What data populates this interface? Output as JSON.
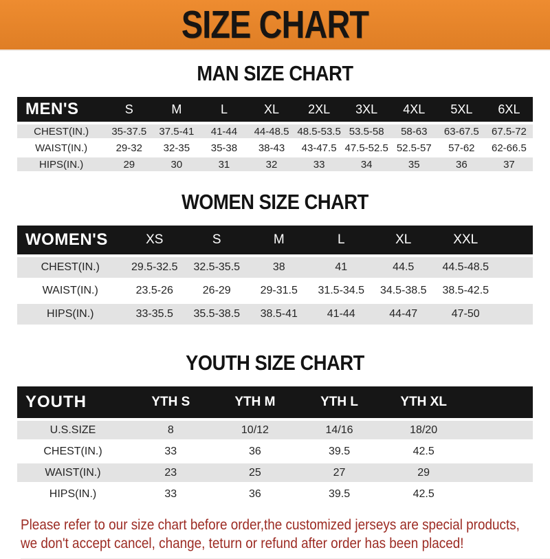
{
  "banner": {
    "title": "SIZE CHART",
    "bg_color": "#E5832C",
    "text_color": "#171513"
  },
  "colors": {
    "table_header_bar": "#161616",
    "row_stripe": "#E3E3E3",
    "footer_text": "#9C2B23"
  },
  "sections": {
    "men": {
      "heading": "MAN SIZE CHART",
      "table": {
        "corner": "MEN'S",
        "columns": [
          "S",
          "M",
          "L",
          "XL",
          "2XL",
          "3XL",
          "4XL",
          "5XL",
          "6XL"
        ],
        "rows": [
          {
            "label": "CHEST(IN.)",
            "values": [
              "35-37.5",
              "37.5-41",
              "41-44",
              "44-48.5",
              "48.5-53.5",
              "53.5-58",
              "58-63",
              "63-67.5",
              "67.5-72"
            ]
          },
          {
            "label": "WAIST(IN.)",
            "values": [
              "29-32",
              "32-35",
              "35-38",
              "38-43",
              "43-47.5",
              "47.5-52.5",
              "52.5-57",
              "57-62",
              "62-66.5"
            ]
          },
          {
            "label": "HIPS(IN.)",
            "values": [
              "29",
              "30",
              "31",
              "32",
              "33",
              "34",
              "35",
              "36",
              "37"
            ]
          }
        ],
        "filler": false
      }
    },
    "women": {
      "heading": "WOMEN SIZE CHART",
      "table": {
        "corner": "WOMEN'S",
        "columns": [
          "XS",
          "S",
          "M",
          "L",
          "XL",
          "XXL"
        ],
        "rows": [
          {
            "label": "CHEST(IN.)",
            "values": [
              "29.5-32.5",
              "32.5-35.5",
              "38",
              "41",
              "44.5",
              "44.5-48.5"
            ]
          },
          {
            "label": "WAIST(IN.)",
            "values": [
              "23.5-26",
              "26-29",
              "29-31.5",
              "31.5-34.5",
              "34.5-38.5",
              "38.5-42.5"
            ]
          },
          {
            "label": "HIPS(IN.)",
            "values": [
              "33-35.5",
              "35.5-38.5",
              "38.5-41",
              "41-44",
              "44-47",
              "47-50"
            ]
          }
        ],
        "filler": true
      }
    },
    "youth": {
      "heading": "YOUTH SIZE CHART",
      "table": {
        "corner": "YOUTH",
        "columns": [
          "YTH S",
          "YTH M",
          "YTH L",
          "YTH XL"
        ],
        "rows": [
          {
            "label": "U.S.SIZE",
            "values": [
              "8",
              "10/12",
              "14/16",
              "18/20"
            ]
          },
          {
            "label": "CHEST(IN.)",
            "values": [
              "33",
              "36",
              "39.5",
              "42.5"
            ]
          },
          {
            "label": "WAIST(IN.)",
            "values": [
              "23",
              "25",
              "27",
              "29"
            ]
          },
          {
            "label": "HIPS(IN.)",
            "values": [
              "33",
              "36",
              "39.5",
              "42.5"
            ]
          }
        ],
        "filler": true
      }
    }
  },
  "footer": {
    "lines": [
      "Please refer to our size chart before order,the customized jerseys are special products,",
      "we don't accept cancel, change, teturn or refund after order has been placed!"
    ]
  }
}
